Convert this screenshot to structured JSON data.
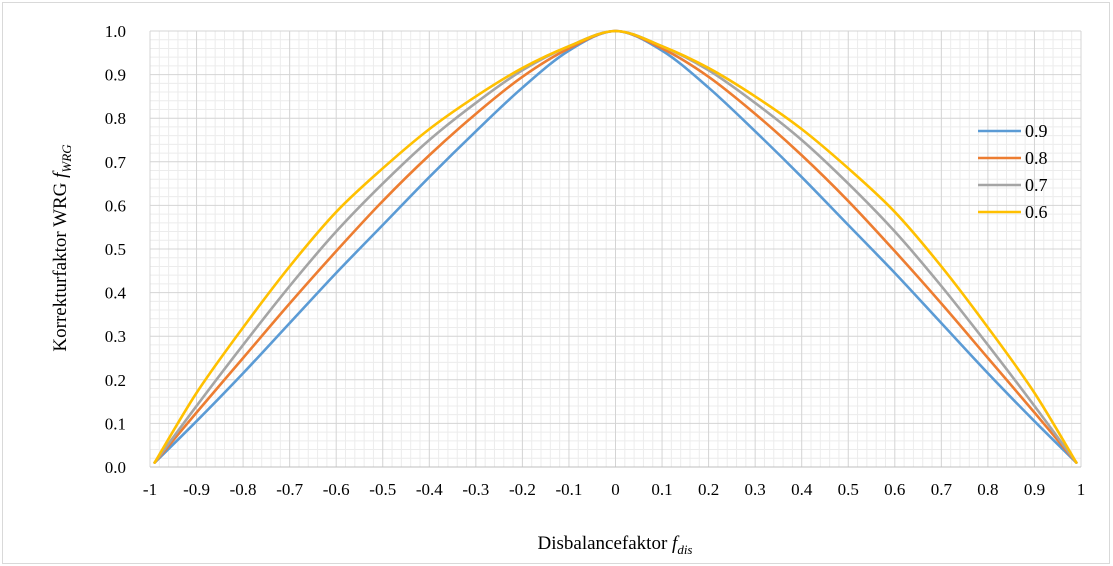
{
  "chart_data": {
    "type": "line",
    "title": "",
    "xlabel": {
      "main": "Disbalancefaktor ",
      "symbol": "f",
      "sub": "dis"
    },
    "ylabel": {
      "main": "Korrekturfaktor WRG  ",
      "symbol": "f",
      "sub": "WRG"
    },
    "xlim": [
      -1,
      1
    ],
    "ylim": [
      0,
      1
    ],
    "x_ticks": [
      "-1",
      "-0.9",
      "-0.8",
      "-0.7",
      "-0.6",
      "-0.5",
      "-0.4",
      "-0.3",
      "-0.2",
      "-0.1",
      "0",
      "0.1",
      "0.2",
      "0.3",
      "0.4",
      "0.5",
      "0.6",
      "0.7",
      "0.8",
      "0.9",
      "1"
    ],
    "y_ticks": [
      "0.0",
      "0.1",
      "0.2",
      "0.3",
      "0.4",
      "0.5",
      "0.6",
      "0.7",
      "0.8",
      "0.9",
      "1.0"
    ],
    "grid": true,
    "legend_position": "right",
    "x": [
      -0.99,
      -0.9,
      -0.8,
      -0.7,
      -0.6,
      -0.5,
      -0.4,
      -0.3,
      -0.2,
      -0.1,
      0,
      0.1,
      0.2,
      0.3,
      0.4,
      0.5,
      0.6,
      0.7,
      0.8,
      0.9,
      0.99
    ],
    "series": [
      {
        "name": "0.9",
        "color": "#5b9bd5",
        "values": [
          0.01,
          0.105,
          0.215,
          0.33,
          0.445,
          0.555,
          0.665,
          0.77,
          0.87,
          0.955,
          1.0,
          0.955,
          0.87,
          0.77,
          0.665,
          0.555,
          0.445,
          0.33,
          0.215,
          0.105,
          0.01
        ]
      },
      {
        "name": "0.8",
        "color": "#ed7d31",
        "values": [
          0.01,
          0.125,
          0.25,
          0.375,
          0.495,
          0.61,
          0.715,
          0.81,
          0.895,
          0.96,
          1.0,
          0.96,
          0.895,
          0.81,
          0.715,
          0.61,
          0.495,
          0.375,
          0.25,
          0.125,
          0.01
        ]
      },
      {
        "name": "0.7",
        "color": "#a5a5a5",
        "values": [
          0.01,
          0.14,
          0.28,
          0.415,
          0.54,
          0.65,
          0.75,
          0.835,
          0.91,
          0.965,
          1.0,
          0.965,
          0.91,
          0.835,
          0.75,
          0.65,
          0.54,
          0.415,
          0.28,
          0.14,
          0.01
        ]
      },
      {
        "name": "0.6",
        "color": "#ffc000",
        "values": [
          0.01,
          0.17,
          0.32,
          0.46,
          0.585,
          0.685,
          0.775,
          0.85,
          0.915,
          0.965,
          1.0,
          0.965,
          0.915,
          0.85,
          0.775,
          0.685,
          0.585,
          0.46,
          0.32,
          0.17,
          0.01
        ]
      }
    ]
  }
}
